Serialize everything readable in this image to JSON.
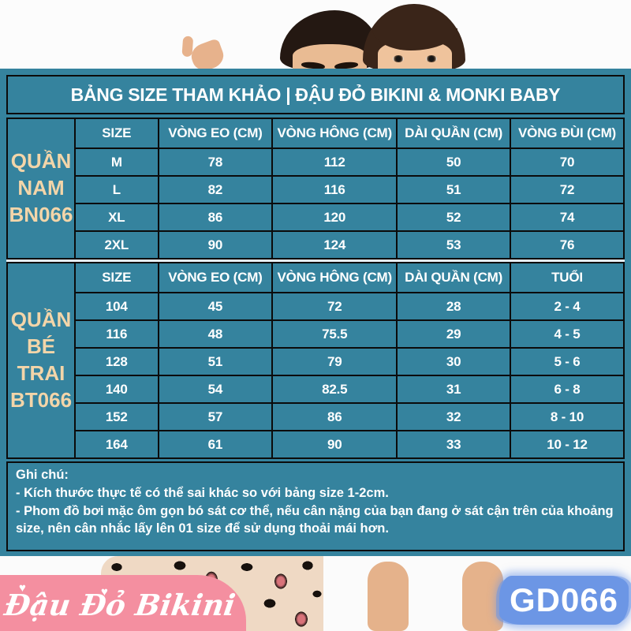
{
  "header": {
    "title": "BẢNG SIZE THAM KHẢO | ĐẬU ĐỎ BIKINI & MONKI BABY"
  },
  "tables": [
    {
      "label_lines": [
        "QUẦN",
        "NAM",
        "BN066"
      ],
      "columns": [
        "SIZE",
        "VÒNG EO (CM)",
        "VÒNG HÔNG (CM)",
        "DÀI QUẦN (CM)",
        "VÒNG ĐÙI (CM)"
      ],
      "rows": [
        [
          "M",
          "78",
          "112",
          "50",
          "70"
        ],
        [
          "L",
          "82",
          "116",
          "51",
          "72"
        ],
        [
          "XL",
          "86",
          "120",
          "52",
          "74"
        ],
        [
          "2XL",
          "90",
          "124",
          "53",
          "76"
        ]
      ]
    },
    {
      "label_lines": [
        "QUẦN",
        "BÉ",
        "TRAI",
        "BT066"
      ],
      "columns": [
        "SIZE",
        "VÒNG EO (CM)",
        "VÒNG HÔNG (CM)",
        "DÀI QUẦN (CM)",
        "TUỔI"
      ],
      "rows": [
        [
          "104",
          "45",
          "72",
          "28",
          "2 - 4"
        ],
        [
          "116",
          "48",
          "75.5",
          "29",
          "4 - 5"
        ],
        [
          "128",
          "51",
          "79",
          "30",
          "5 - 6"
        ],
        [
          "140",
          "54",
          "82.5",
          "31",
          "6 - 8"
        ],
        [
          "152",
          "57",
          "86",
          "32",
          "8 - 10"
        ],
        [
          "164",
          "61",
          "90",
          "33",
          "10 - 12"
        ]
      ]
    }
  ],
  "notes": {
    "heading": "Ghi chú:",
    "lines": [
      "- Kích thước thực tế có thể sai khác so với bảng size 1-2cm.",
      "- Phom đồ bơi mặc ôm gọn bó sát cơ thể, nếu cân nặng của bạn đang ở sát cận trên của khoảng size, nên cân nhắc lấy lên 01 size để sử dụng thoải mái hơn."
    ]
  },
  "footer": {
    "brand": "Đậu Đỏ Bikini",
    "code": "GD066"
  },
  "colors": {
    "teal": "#35839E",
    "border_black": "#0B0B0B",
    "label_peach": "#F3D5A9",
    "separator_light": "#E4EBF1",
    "brand_pink": "#F48FA0",
    "badge_blue": "#6C96E5",
    "text_white": "#FFFFFF"
  },
  "icons": {
    "heart": "♥"
  }
}
